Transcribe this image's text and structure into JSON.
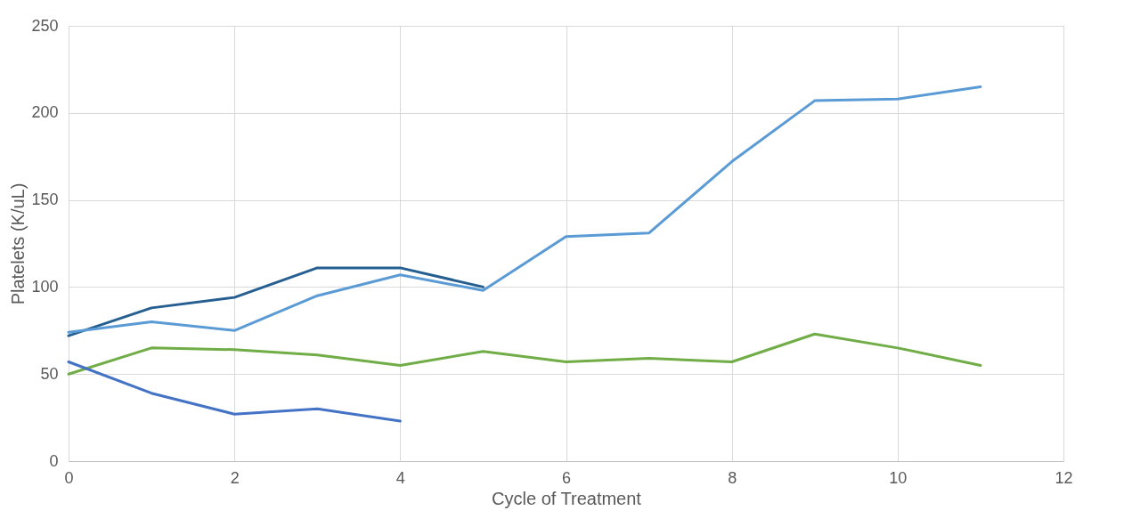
{
  "chart_data": {
    "type": "line",
    "xlabel": "Cycle of Treatment",
    "ylabel": "Platelets (K/uL)",
    "xlim": [
      0,
      12
    ],
    "xticks": [
      0,
      2,
      4,
      6,
      8,
      10,
      12
    ],
    "ylim": [
      0,
      250
    ],
    "yticks": [
      0,
      50,
      100,
      150,
      200,
      250
    ],
    "grid": true,
    "line_style": "solid",
    "series": [
      {
        "color": "#255e91",
        "x": [
          0,
          1,
          2,
          3,
          4,
          5
        ],
        "values": [
          72,
          88,
          94,
          111,
          111,
          100
        ]
      },
      {
        "color": "#5b9bd5",
        "x": [
          0,
          1,
          2,
          3,
          4,
          5,
          6,
          7,
          8,
          9,
          10,
          11
        ],
        "values": [
          74,
          80,
          75,
          95,
          107,
          98,
          129,
          131,
          172,
          207,
          208,
          215
        ]
      },
      {
        "color": "#70ad47",
        "x": [
          0,
          1,
          2,
          3,
          4,
          5,
          6,
          7,
          8,
          9,
          10,
          11
        ],
        "values": [
          50,
          65,
          64,
          61,
          55,
          63,
          57,
          59,
          57,
          73,
          65,
          55
        ]
      },
      {
        "color": "#4472c4",
        "x": [
          0,
          1,
          2,
          3,
          4
        ],
        "values": [
          57,
          39,
          27,
          30,
          23
        ]
      }
    ]
  }
}
